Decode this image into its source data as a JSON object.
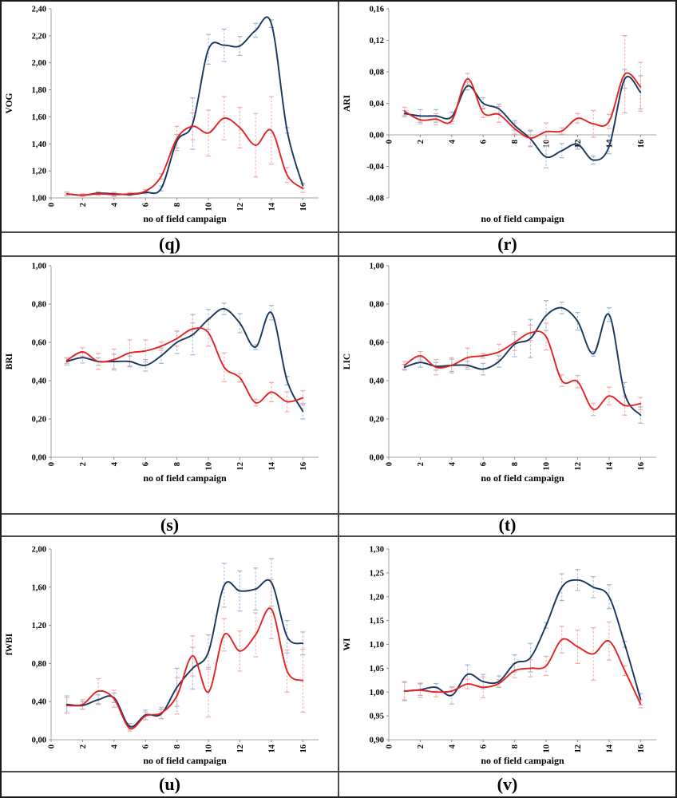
{
  "figure": {
    "xlabel": "no of field campaign",
    "colors": {
      "series_red": "#E32222",
      "series_blue": "#17375E",
      "error_red": "#F4A9A9",
      "error_blue": "#9FB6D4",
      "axis_line": "#A6A6A6",
      "tick_mark": "#8C8C8C",
      "grid_border": "#4A4A4A"
    }
  },
  "chart_data": [
    {
      "panel": "q",
      "caption": "(q)",
      "type": "line",
      "ylabel": "VOG",
      "xlabel": "no of field campaign",
      "xlim": [
        0,
        17
      ],
      "ylim": [
        1.0,
        2.4
      ],
      "xaxis_at": 1.0,
      "xticks": [
        0,
        2,
        4,
        6,
        8,
        10,
        12,
        14,
        16
      ],
      "yticks": [
        1.0,
        1.2,
        1.4,
        1.6,
        1.8,
        2.0,
        2.2,
        2.4
      ],
      "ytick_labels": [
        "1,00",
        "1,20",
        "1,40",
        "1,60",
        "1,80",
        "2,00",
        "2,20",
        "2,40"
      ],
      "x": [
        1,
        2,
        3,
        4,
        5,
        6,
        7,
        8,
        9,
        10,
        11,
        12,
        13,
        14,
        15,
        16
      ],
      "series": [
        {
          "name": "blue",
          "color": "#17375E",
          "errcolor": "#9FB6D4",
          "values": [
            1.03,
            1.02,
            1.035,
            1.03,
            1.025,
            1.04,
            1.07,
            1.42,
            1.55,
            2.1,
            2.13,
            2.125,
            2.24,
            2.29,
            1.5,
            1.09
          ],
          "errors": [
            0.012,
            0.008,
            0.01,
            0.012,
            0.008,
            0.008,
            0.018,
            0.05,
            0.19,
            0.11,
            0.12,
            0.07,
            0.052,
            0.028,
            0.02,
            0.018
          ]
        },
        {
          "name": "red",
          "color": "#E32222",
          "errcolor": "#F4A9A9",
          "values": [
            1.03,
            1.02,
            1.03,
            1.025,
            1.03,
            1.05,
            1.16,
            1.44,
            1.53,
            1.48,
            1.59,
            1.52,
            1.39,
            1.5,
            1.17,
            1.07
          ],
          "errors": [
            0.015,
            0.01,
            0.012,
            0.015,
            0.01,
            0.012,
            0.02,
            0.09,
            0.1,
            0.17,
            0.16,
            0.15,
            0.235,
            0.25,
            0.055,
            0.03
          ]
        }
      ]
    },
    {
      "panel": "r",
      "caption": "(r)",
      "type": "line",
      "ylabel": "ARI",
      "xlabel": "no of field campaign",
      "xlim": [
        0,
        17
      ],
      "ylim": [
        -0.08,
        0.16
      ],
      "xaxis_at": 0.0,
      "xticks": [
        0,
        2,
        4,
        6,
        8,
        10,
        12,
        14,
        16
      ],
      "yticks": [
        -0.08,
        -0.04,
        0.0,
        0.04,
        0.08,
        0.12,
        0.16
      ],
      "ytick_labels": [
        "-0,08",
        "-0,04",
        "0,00",
        "0,04",
        "0,08",
        "0,12",
        "0,16"
      ],
      "x": [
        1,
        2,
        3,
        4,
        5,
        6,
        7,
        8,
        9,
        10,
        11,
        12,
        13,
        14,
        15,
        16
      ],
      "series": [
        {
          "name": "blue",
          "color": "#17375E",
          "errcolor": "#9FB6D4",
          "values": [
            0.027,
            0.024,
            0.024,
            0.023,
            0.062,
            0.04,
            0.033,
            0.012,
            -0.005,
            -0.028,
            -0.02,
            -0.012,
            -0.032,
            -0.015,
            0.071,
            0.054
          ],
          "errors": [
            0.004,
            0.008,
            0.008,
            0.006,
            0.005,
            0.007,
            0.006,
            0.006,
            0.01,
            0.014,
            0.009,
            0.006,
            0.005,
            0.009,
            0.012,
            0.021
          ]
        },
        {
          "name": "red",
          "color": "#E32222",
          "errcolor": "#F4A9A9",
          "values": [
            0.03,
            0.019,
            0.02,
            0.018,
            0.071,
            0.028,
            0.026,
            0.008,
            -0.004,
            0.004,
            0.005,
            0.021,
            0.014,
            0.017,
            0.077,
            0.061
          ],
          "errors": [
            0.005,
            0.005,
            0.007,
            0.004,
            0.007,
            0.006,
            0.01,
            0.007,
            0.01,
            0.011,
            0.004,
            0.006,
            0.017,
            0.009,
            0.049,
            0.031
          ]
        }
      ]
    },
    {
      "panel": "s",
      "caption": "(s)",
      "type": "line",
      "ylabel": "BRI",
      "xlabel": "no of field campaign",
      "xlim": [
        0,
        17
      ],
      "ylim": [
        0.0,
        1.0
      ],
      "xaxis_at": 0.0,
      "xticks": [
        0,
        2,
        4,
        6,
        8,
        10,
        12,
        14,
        16
      ],
      "yticks": [
        0.0,
        0.2,
        0.4,
        0.6,
        0.8,
        1.0
      ],
      "ytick_labels": [
        "0,00",
        "0,20",
        "0,40",
        "0,60",
        "0,80",
        "1,00"
      ],
      "x": [
        1,
        2,
        3,
        4,
        5,
        6,
        7,
        8,
        9,
        10,
        11,
        12,
        13,
        14,
        15,
        16
      ],
      "series": [
        {
          "name": "blue",
          "color": "#17375E",
          "errcolor": "#9FB6D4",
          "values": [
            0.5,
            0.52,
            0.5,
            0.5,
            0.5,
            0.48,
            0.53,
            0.6,
            0.64,
            0.72,
            0.775,
            0.7,
            0.575,
            0.755,
            0.4,
            0.24
          ],
          "errors": [
            0.018,
            0.028,
            0.02,
            0.038,
            0.028,
            0.03,
            0.04,
            0.058,
            0.105,
            0.052,
            0.03,
            0.05,
            0.012,
            0.038,
            0.022,
            0.04
          ]
        },
        {
          "name": "red",
          "color": "#E32222",
          "errcolor": "#F4A9A9",
          "values": [
            0.505,
            0.55,
            0.5,
            0.51,
            0.545,
            0.555,
            0.58,
            0.62,
            0.67,
            0.65,
            0.47,
            0.415,
            0.285,
            0.34,
            0.29,
            0.31
          ],
          "errors": [
            0.015,
            0.022,
            0.042,
            0.055,
            0.068,
            0.058,
            0.022,
            0.04,
            0.032,
            0.07,
            0.075,
            0.022,
            0.018,
            0.05,
            0.052,
            0.038
          ]
        }
      ]
    },
    {
      "panel": "t",
      "caption": "(t)",
      "type": "line",
      "ylabel": "LIC",
      "xlabel": "no of field campaign",
      "xlim": [
        0,
        17
      ],
      "ylim": [
        0.0,
        1.0
      ],
      "xaxis_at": 0.0,
      "xticks": [
        0,
        2,
        4,
        6,
        8,
        10,
        12,
        14,
        16
      ],
      "yticks": [
        0.0,
        0.2,
        0.4,
        0.6,
        0.8,
        1.0
      ],
      "ytick_labels": [
        "0,00",
        "0,20",
        "0,40",
        "0,60",
        "0,80",
        "1,00"
      ],
      "x": [
        1,
        2,
        3,
        4,
        5,
        6,
        7,
        8,
        9,
        10,
        11,
        12,
        13,
        14,
        15,
        16
      ],
      "series": [
        {
          "name": "blue",
          "color": "#17375E",
          "errcolor": "#9FB6D4",
          "values": [
            0.47,
            0.495,
            0.475,
            0.48,
            0.48,
            0.46,
            0.5,
            0.59,
            0.62,
            0.74,
            0.78,
            0.71,
            0.54,
            0.745,
            0.33,
            0.22
          ],
          "errors": [
            0.015,
            0.025,
            0.02,
            0.032,
            0.02,
            0.03,
            0.03,
            0.065,
            0.1,
            0.078,
            0.03,
            0.046,
            0.012,
            0.036,
            0.06,
            0.042
          ]
        },
        {
          "name": "red",
          "color": "#E32222",
          "errcolor": "#F4A9A9",
          "values": [
            0.48,
            0.53,
            0.47,
            0.48,
            0.52,
            0.53,
            0.55,
            0.6,
            0.65,
            0.63,
            0.4,
            0.395,
            0.25,
            0.32,
            0.27,
            0.28
          ],
          "errors": [
            0.02,
            0.022,
            0.04,
            0.04,
            0.05,
            0.012,
            0.04,
            0.042,
            0.04,
            0.07,
            0.03,
            0.032,
            0.032,
            0.046,
            0.05,
            0.032
          ]
        }
      ]
    },
    {
      "panel": "u",
      "caption": "(u)",
      "type": "line",
      "ylabel": "fWBI",
      "xlabel": "no of field campaign",
      "xlim": [
        0,
        17
      ],
      "ylim": [
        0.0,
        2.0
      ],
      "xaxis_at": 0.0,
      "xticks": [
        0,
        2,
        4,
        6,
        8,
        10,
        12,
        14,
        16
      ],
      "yticks": [
        0.0,
        0.4,
        0.8,
        1.2,
        1.6,
        2.0
      ],
      "ytick_labels": [
        "0,00",
        "0,40",
        "0,80",
        "1,20",
        "1,60",
        "2,00"
      ],
      "x": [
        1,
        2,
        3,
        4,
        5,
        6,
        7,
        8,
        9,
        10,
        11,
        12,
        13,
        14,
        15,
        16
      ],
      "series": [
        {
          "name": "blue",
          "color": "#17375E",
          "errcolor": "#9FB6D4",
          "values": [
            0.37,
            0.36,
            0.42,
            0.44,
            0.14,
            0.26,
            0.27,
            0.55,
            0.75,
            0.92,
            1.62,
            1.56,
            1.58,
            1.65,
            1.08,
            1.01
          ],
          "errors": [
            0.09,
            0.04,
            0.05,
            0.05,
            0.03,
            0.05,
            0.05,
            0.2,
            0.22,
            0.18,
            0.23,
            0.21,
            0.22,
            0.25,
            0.17,
            0.12
          ]
        },
        {
          "name": "red",
          "color": "#E32222",
          "errcolor": "#F4A9A9",
          "values": [
            0.36,
            0.37,
            0.51,
            0.43,
            0.12,
            0.25,
            0.28,
            0.46,
            0.88,
            0.5,
            1.1,
            0.93,
            1.1,
            1.37,
            0.72,
            0.62
          ],
          "errors": [
            0.08,
            0.05,
            0.13,
            0.09,
            0.03,
            0.04,
            0.06,
            0.19,
            0.21,
            0.26,
            0.17,
            0.21,
            0.23,
            0.31,
            0.22,
            0.33
          ]
        }
      ]
    },
    {
      "panel": "v",
      "caption": "(v)",
      "type": "line",
      "ylabel": "WI",
      "xlabel": "no of field campaign",
      "xlim": [
        0,
        17
      ],
      "ylim": [
        0.9,
        1.3
      ],
      "xaxis_at": 0.9,
      "xticks": [
        0,
        2,
        4,
        6,
        8,
        10,
        12,
        14,
        16
      ],
      "yticks": [
        0.9,
        0.95,
        1.0,
        1.05,
        1.1,
        1.15,
        1.2,
        1.25,
        1.3
      ],
      "ytick_labels": [
        "0,90",
        "0,95",
        "1,00",
        "1,05",
        "1,10",
        "1,15",
        "1,20",
        "1,25",
        "1,30"
      ],
      "x": [
        1,
        2,
        3,
        4,
        5,
        6,
        7,
        8,
        9,
        10,
        11,
        12,
        13,
        14,
        15,
        16
      ],
      "series": [
        {
          "name": "blue",
          "color": "#17375E",
          "errcolor": "#9FB6D4",
          "values": [
            1.002,
            1.005,
            1.01,
            0.993,
            1.037,
            1.022,
            1.022,
            1.06,
            1.072,
            1.14,
            1.22,
            1.235,
            1.22,
            1.2,
            1.1,
            0.985
          ],
          "errors": [
            0.02,
            0.012,
            0.008,
            0.018,
            0.02,
            0.015,
            0.012,
            0.018,
            0.03,
            0.006,
            0.028,
            0.022,
            0.022,
            0.025,
            0.006,
            0.012
          ]
        },
        {
          "name": "red",
          "color": "#E32222",
          "errcolor": "#F4A9A9",
          "values": [
            1.002,
            1.004,
            1.0,
            1.002,
            1.017,
            1.01,
            1.018,
            1.045,
            1.05,
            1.055,
            1.11,
            1.095,
            1.08,
            1.107,
            1.045,
            0.975
          ],
          "errors": [
            0.018,
            0.015,
            0.01,
            0.008,
            0.01,
            0.022,
            0.008,
            0.015,
            0.018,
            0.02,
            0.028,
            0.035,
            0.055,
            0.04,
            0.01,
            0.008
          ]
        }
      ]
    }
  ]
}
